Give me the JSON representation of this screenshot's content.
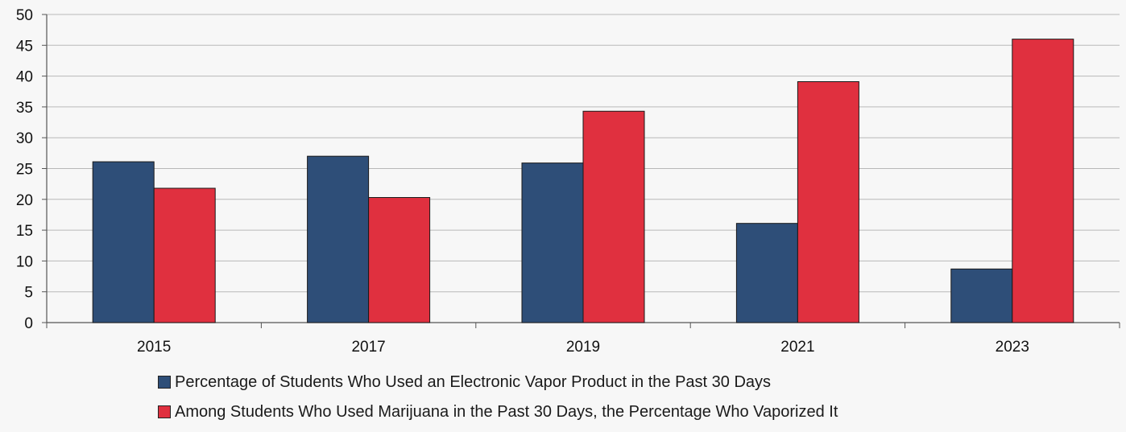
{
  "chart_data": {
    "type": "bar",
    "categories": [
      "2015",
      "2017",
      "2019",
      "2021",
      "2023"
    ],
    "series": [
      {
        "name": "Percentage of Students Who Used an Electronic Vapor Product in the Past 30 Days",
        "values": [
          26.1,
          27.0,
          25.9,
          16.1,
          8.7
        ],
        "color": "#2e4e78"
      },
      {
        "name": "Among Students Who Used Marijuana in the Past 30 Days, the Percentage Who Vaporized It",
        "values": [
          21.8,
          20.3,
          34.3,
          39.1,
          46.0
        ],
        "color": "#e0303f"
      }
    ],
    "yticks": [
      "0",
      "5",
      "10",
      "15",
      "20",
      "25",
      "30",
      "35",
      "40",
      "45",
      "50"
    ],
    "ylim": [
      0,
      50
    ],
    "grid": true,
    "legend_position": "bottom",
    "title": "",
    "xlabel": "",
    "ylabel": ""
  }
}
